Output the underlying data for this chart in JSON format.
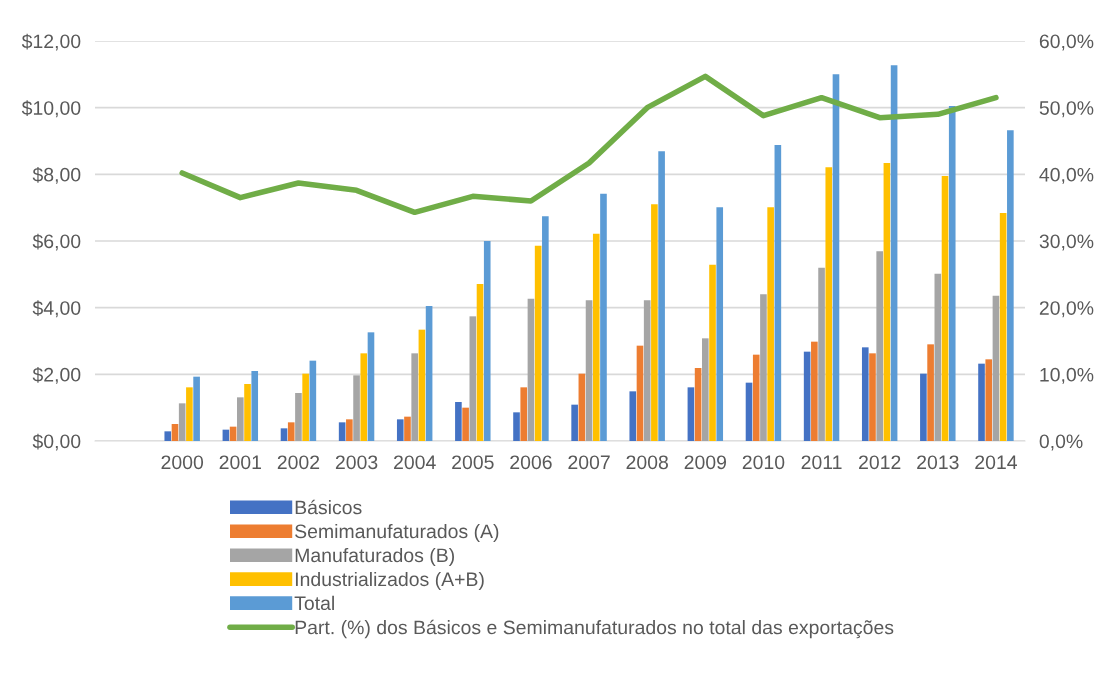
{
  "chart_data": {
    "type": "bar",
    "categories": [
      null,
      "2000",
      "2001",
      "2002",
      "2003",
      "2004",
      "2005",
      "2006",
      "2007",
      "2008",
      "2009",
      "2010",
      "2011",
      "2012",
      "2013",
      "2014"
    ],
    "series": [
      {
        "name": "Básicos",
        "color": "#4472c4",
        "values": [
          null,
          0.29,
          0.34,
          0.38,
          0.56,
          0.65,
          1.17,
          0.86,
          1.09,
          1.49,
          1.61,
          1.75,
          2.68,
          2.81,
          2.02,
          2.32
        ]
      },
      {
        "name": "Semimanufaturados (A)",
        "color": "#ed7d31",
        "values": [
          null,
          0.51,
          0.43,
          0.56,
          0.65,
          0.73,
          1.0,
          1.61,
          2.02,
          2.86,
          2.19,
          2.59,
          2.98,
          2.63,
          2.9,
          2.45
        ]
      },
      {
        "name": "Manufaturados (B)",
        "color": "#a5a5a5",
        "values": [
          null,
          1.13,
          1.31,
          1.44,
          1.97,
          2.63,
          3.74,
          4.27,
          4.22,
          4.22,
          3.08,
          4.4,
          5.2,
          5.69,
          5.02,
          4.36
        ]
      },
      {
        "name": "Industrializados (A+B)",
        "color": "#ffc000",
        "values": [
          null,
          1.61,
          1.71,
          2.02,
          2.63,
          3.34,
          4.71,
          5.86,
          6.22,
          7.1,
          5.29,
          7.01,
          8.21,
          8.34,
          7.95,
          6.84
        ]
      },
      {
        "name": "Total",
        "color": "#5b9bd5",
        "values": [
          null,
          1.93,
          2.1,
          2.41,
          3.26,
          4.05,
          6.0,
          6.74,
          7.42,
          8.69,
          7.01,
          8.88,
          11.0,
          11.27,
          10.05,
          9.32
        ]
      },
      {
        "name": "Part. (%) dos Básicos e Semimanufaturados no total das exportações",
        "type": "line",
        "axis": "y2",
        "color": "#70ad47",
        "values": [
          null,
          40.2,
          36.5,
          38.7,
          37.6,
          34.3,
          36.7,
          36.0,
          41.7,
          50.0,
          54.7,
          48.8,
          51.5,
          48.5,
          49.0,
          51.5
        ]
      }
    ],
    "ylim": [
      0,
      12
    ],
    "yticks": [
      {
        "value": 0,
        "label": "$0,00"
      },
      {
        "value": 2,
        "label": "$2,00"
      },
      {
        "value": 4,
        "label": "$4,00"
      },
      {
        "value": 6,
        "label": "$6,00"
      },
      {
        "value": 8,
        "label": "$8,00"
      },
      {
        "value": 10,
        "label": "$10,00"
      },
      {
        "value": 12,
        "label": "$12,00"
      }
    ],
    "y2lim": [
      0,
      60
    ],
    "y2ticks": [
      {
        "value": 0,
        "label": "0,0%"
      },
      {
        "value": 10,
        "label": "10,0%"
      },
      {
        "value": 20,
        "label": "20,0%"
      },
      {
        "value": 30,
        "label": "30,0%"
      },
      {
        "value": 40,
        "label": "40,0%"
      },
      {
        "value": 50,
        "label": "50,0%"
      },
      {
        "value": 60,
        "label": "60,0%"
      }
    ],
    "grid": "y",
    "legend": "bottom"
  }
}
